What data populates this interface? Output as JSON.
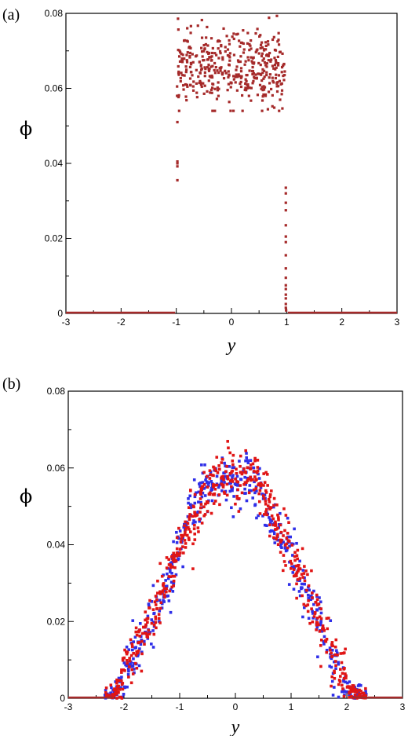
{
  "chart_data": [
    {
      "type": "scatter",
      "panel_label": "(a)",
      "title": "",
      "xlabel": "y",
      "ylabel": "ϕ",
      "xlim": [
        -3,
        3
      ],
      "ylim": [
        0,
        0.08
      ],
      "xticks": [
        "-3",
        "-2",
        "-1",
        "0",
        "1",
        "2",
        "3"
      ],
      "yticks": [
        "0",
        "0.02",
        "0.04",
        "0.06",
        "0.08"
      ],
      "grid": false,
      "series": [
        {
          "color": "#a52a2a",
          "bulk": {
            "x_range": [
              -0.97,
              0.97
            ],
            "y_center": 0.0655,
            "y_spread": 0.0048,
            "y_min": 0.054,
            "y_max": 0.0795,
            "count": 420
          },
          "zero_band": {
            "x_ranges": [
              [
                -3,
                -1.02
              ],
              [
                1.02,
                3
              ]
            ],
            "y": 0
          },
          "wall_points": [
            [
              -0.98,
              0.051
            ],
            [
              -0.98,
              0.04
            ],
            [
              -0.98,
              0.0405
            ],
            [
              -0.98,
              0.0392
            ],
            [
              -0.98,
              0.0355
            ],
            [
              -0.985,
              0.058
            ],
            [
              -0.985,
              0.0605
            ],
            [
              0.985,
              0.0335
            ],
            [
              0.985,
              0.032
            ],
            [
              0.985,
              0.0295
            ],
            [
              0.985,
              0.0275
            ],
            [
              0.985,
              0.0235
            ],
            [
              0.985,
              0.0205
            ],
            [
              0.985,
              0.019
            ],
            [
              0.985,
              0.0155
            ],
            [
              0.985,
              0.012
            ],
            [
              0.985,
              0.0095
            ],
            [
              0.985,
              0.0075
            ],
            [
              0.985,
              0.0065
            ],
            [
              0.985,
              0.005
            ],
            [
              0.985,
              0.004
            ],
            [
              0.985,
              0.0025
            ],
            [
              0.985,
              0.0015
            ],
            [
              0.99,
              0.0008
            ]
          ]
        }
      ]
    },
    {
      "type": "scatter",
      "panel_label": "(b)",
      "title": "",
      "xlabel": "y",
      "ylabel": "ϕ",
      "xlim": [
        -3,
        3
      ],
      "ylim": [
        0,
        0.08
      ],
      "xticks": [
        "-3",
        "-2",
        "-1",
        "0",
        "1",
        "2",
        "3"
      ],
      "yticks": [
        "0",
        "0.02",
        "0.04",
        "0.06",
        "0.08"
      ],
      "grid": false,
      "series": [
        {
          "color": "#2f2fe8",
          "profile": [
            [
              -2.4,
              0
            ],
            [
              -2.2,
              0.001
            ],
            [
              -2.0,
              0.005
            ],
            [
              -1.8,
              0.011
            ],
            [
              -1.5,
              0.02
            ],
            [
              -1.2,
              0.031
            ],
            [
              -1.0,
              0.039
            ],
            [
              -0.8,
              0.048
            ],
            [
              -0.5,
              0.055
            ],
            [
              -0.2,
              0.057
            ],
            [
              0.0,
              0.056
            ],
            [
              0.2,
              0.058
            ],
            [
              0.5,
              0.052
            ],
            [
              0.7,
              0.045
            ],
            [
              1.0,
              0.039
            ],
            [
              1.2,
              0.03
            ],
            [
              1.5,
              0.02
            ],
            [
              1.7,
              0.012
            ],
            [
              1.9,
              0.005
            ],
            [
              2.1,
              0.001
            ],
            [
              2.4,
              0
            ]
          ],
          "spread": 0.0035,
          "count": 520
        },
        {
          "color": "#e01515",
          "profile": [
            [
              -2.4,
              0
            ],
            [
              -2.2,
              0.001
            ],
            [
              -2.0,
              0.006
            ],
            [
              -1.8,
              0.012
            ],
            [
              -1.5,
              0.021
            ],
            [
              -1.2,
              0.031
            ],
            [
              -1.0,
              0.039
            ],
            [
              -0.8,
              0.046
            ],
            [
              -0.5,
              0.053
            ],
            [
              -0.2,
              0.057
            ],
            [
              0.0,
              0.058
            ],
            [
              0.2,
              0.059
            ],
            [
              0.5,
              0.053
            ],
            [
              0.7,
              0.046
            ],
            [
              1.0,
              0.038
            ],
            [
              1.2,
              0.03
            ],
            [
              1.5,
              0.02
            ],
            [
              1.7,
              0.013
            ],
            [
              1.9,
              0.006
            ],
            [
              2.1,
              0.001
            ],
            [
              2.4,
              0
            ]
          ],
          "spread": 0.0035,
          "count": 620
        }
      ],
      "zero_band": {
        "x_ranges": [
          [
            -3,
            -2.2
          ],
          [
            2.1,
            3
          ]
        ],
        "y": 0
      }
    }
  ]
}
